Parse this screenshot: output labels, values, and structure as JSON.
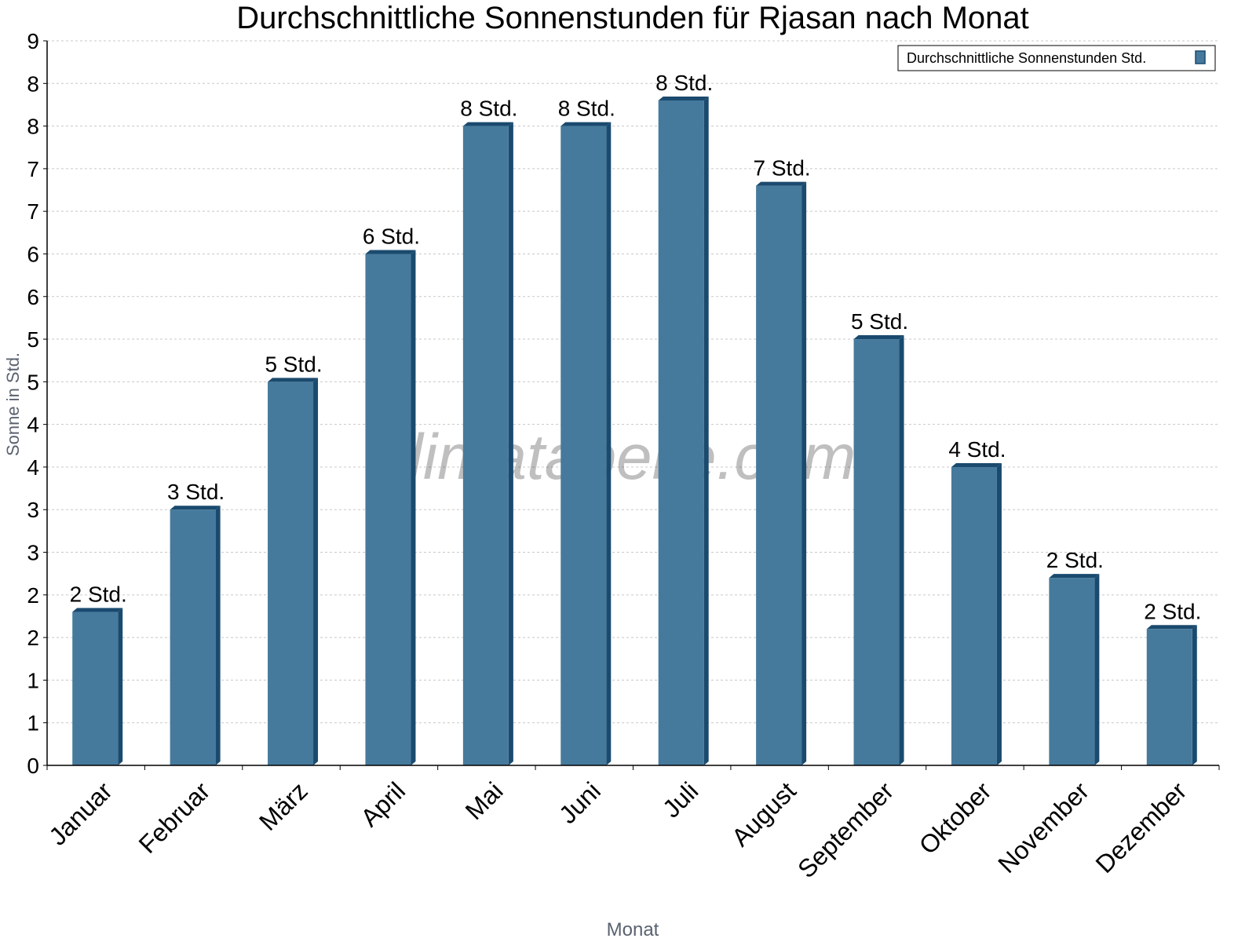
{
  "chart_data": {
    "type": "bar",
    "title": "Durchschnittliche Sonnenstunden für Rjasan nach Monat",
    "xlabel": "Monat",
    "ylabel": "Sonne in Std.",
    "categories": [
      "Januar",
      "Februar",
      "März",
      "April",
      "Mai",
      "Juni",
      "Juli",
      "August",
      "September",
      "Oktober",
      "November",
      "Dezember"
    ],
    "series": [
      {
        "name": "Durchschnittliche Sonnenstunden Std.",
        "values": [
          1.8,
          3.0,
          4.5,
          6.0,
          7.5,
          7.5,
          7.8,
          6.8,
          5.0,
          3.5,
          2.2,
          1.6
        ],
        "data_labels": [
          "2 Std.",
          "3 Std.",
          "5 Std.",
          "6 Std.",
          "8 Std.",
          "8 Std.",
          "8 Std.",
          "7 Std.",
          "5 Std.",
          "4 Std.",
          "2 Std.",
          "2 Std."
        ]
      }
    ],
    "ylim": [
      0,
      8.5
    ],
    "ytick_values": [
      0,
      0.5,
      1,
      1.5,
      2,
      2.5,
      3,
      3.5,
      4,
      4.5,
      5,
      5.5,
      6,
      6.5,
      7,
      7.5,
      8,
      8.5
    ],
    "ytick_labels": [
      "0",
      "1",
      "1",
      "2",
      "2",
      "3",
      "3",
      "4",
      "4",
      "5",
      "5",
      "6",
      "6",
      "7",
      "7",
      "8",
      "8",
      "9"
    ],
    "grid": true,
    "legend_position": "top-right",
    "watermark": "klimatabelle.com",
    "colors": {
      "bar": "#467a9c",
      "bar_shade": "#1a4a6e",
      "grid": "#c8c8c8"
    }
  }
}
